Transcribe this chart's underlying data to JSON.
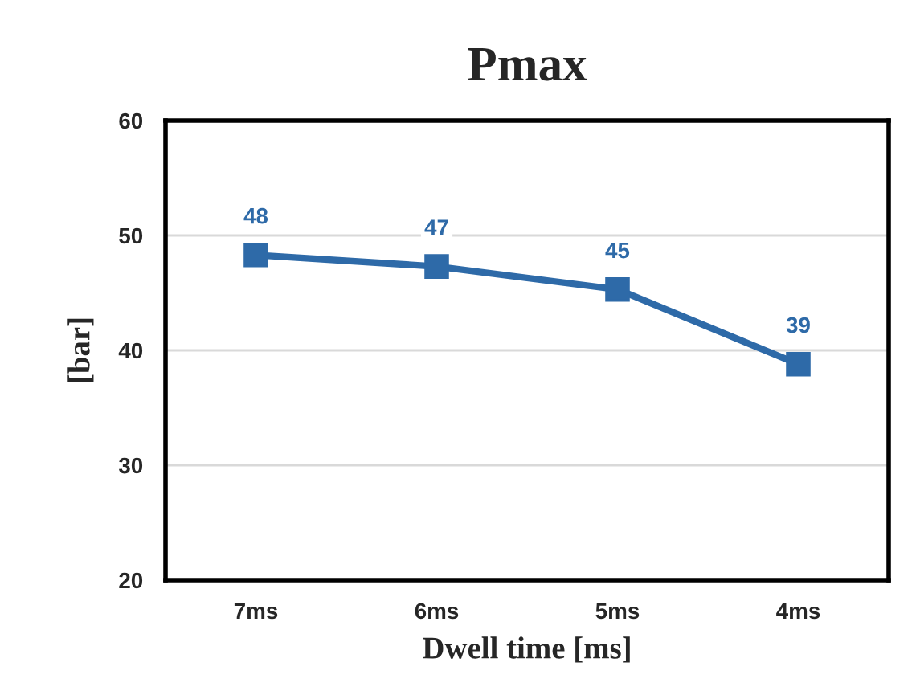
{
  "chart_data": {
    "type": "line",
    "title": "Pmax",
    "xlabel": "Dwell time [ms]",
    "ylabel": "[bar]",
    "categories": [
      "7ms",
      "6ms",
      "5ms",
      "4ms"
    ],
    "series": [
      {
        "color": "#2e6aa8",
        "values": [
          48.3,
          47.3,
          45.3,
          38.8
        ],
        "value_labels": [
          "48",
          "47",
          "45",
          "39"
        ]
      }
    ],
    "ylim": [
      20,
      60
    ],
    "yticks": [
      20,
      30,
      40,
      50,
      60
    ],
    "grid": "y",
    "marker": "square",
    "line_style": "solid",
    "legend": false
  }
}
